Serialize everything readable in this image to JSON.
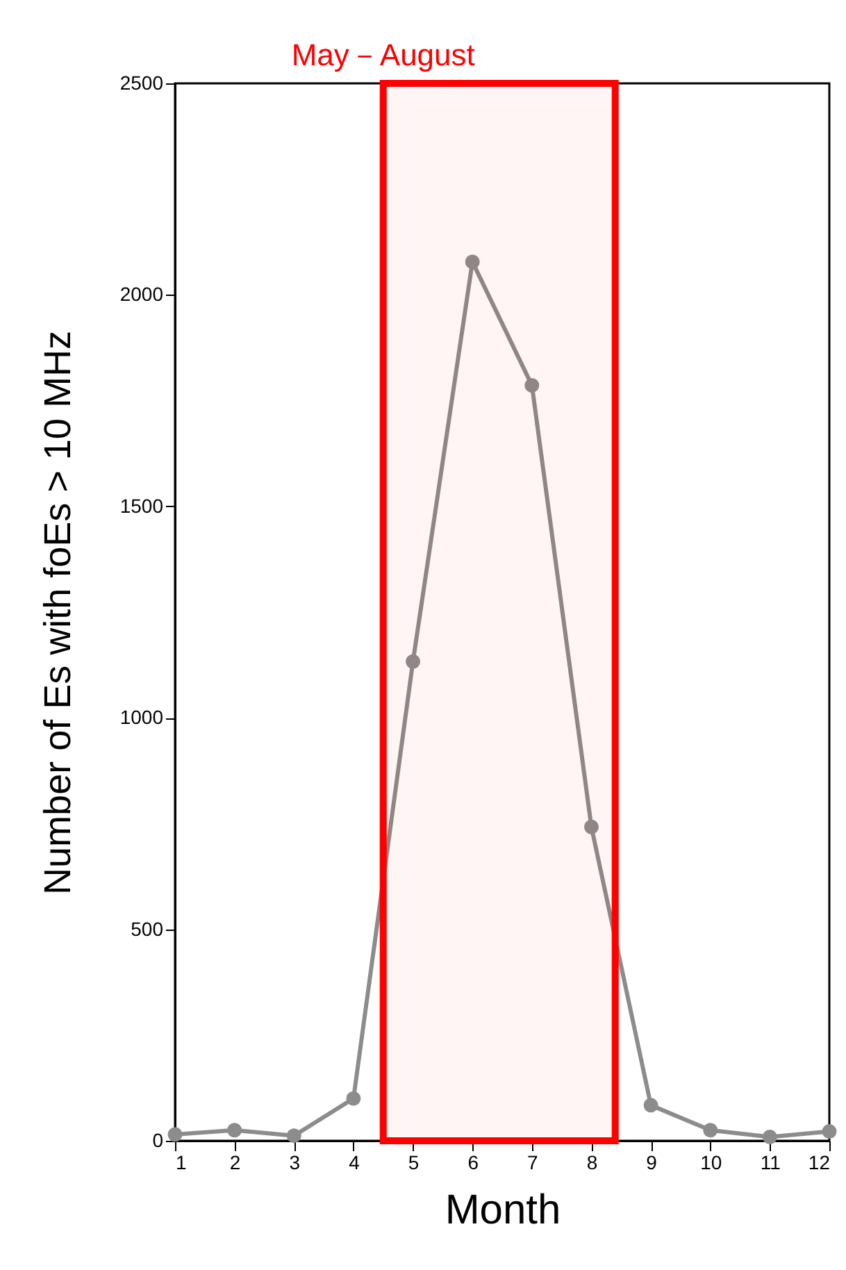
{
  "chart_data": {
    "type": "line",
    "xlabel": "Month",
    "ylabel": "Number of Es with foEs > 10 MHz",
    "x": [
      1,
      2,
      3,
      4,
      5,
      6,
      7,
      8,
      9,
      10,
      11,
      12
    ],
    "series": [
      {
        "color": "#8c8c8c",
        "values": [
          15,
          25,
          12,
          100,
          1133,
          2078,
          1786,
          742,
          84,
          25,
          9,
          22
        ]
      }
    ],
    "xlim": [
      1,
      12
    ],
    "xticks": [
      1,
      2,
      3,
      4,
      5,
      6,
      7,
      8,
      9,
      10,
      11,
      12
    ],
    "ylim": [
      0,
      2500
    ],
    "yticks": [
      0,
      500,
      1000,
      1500,
      2000,
      2500
    ],
    "bands": [
      {
        "axis": "x",
        "from": 4.5,
        "to": 8.4,
        "label": "May－August",
        "color": "#ff0000"
      }
    ],
    "marker": "circle",
    "line_style": "solid",
    "grid": false
  }
}
